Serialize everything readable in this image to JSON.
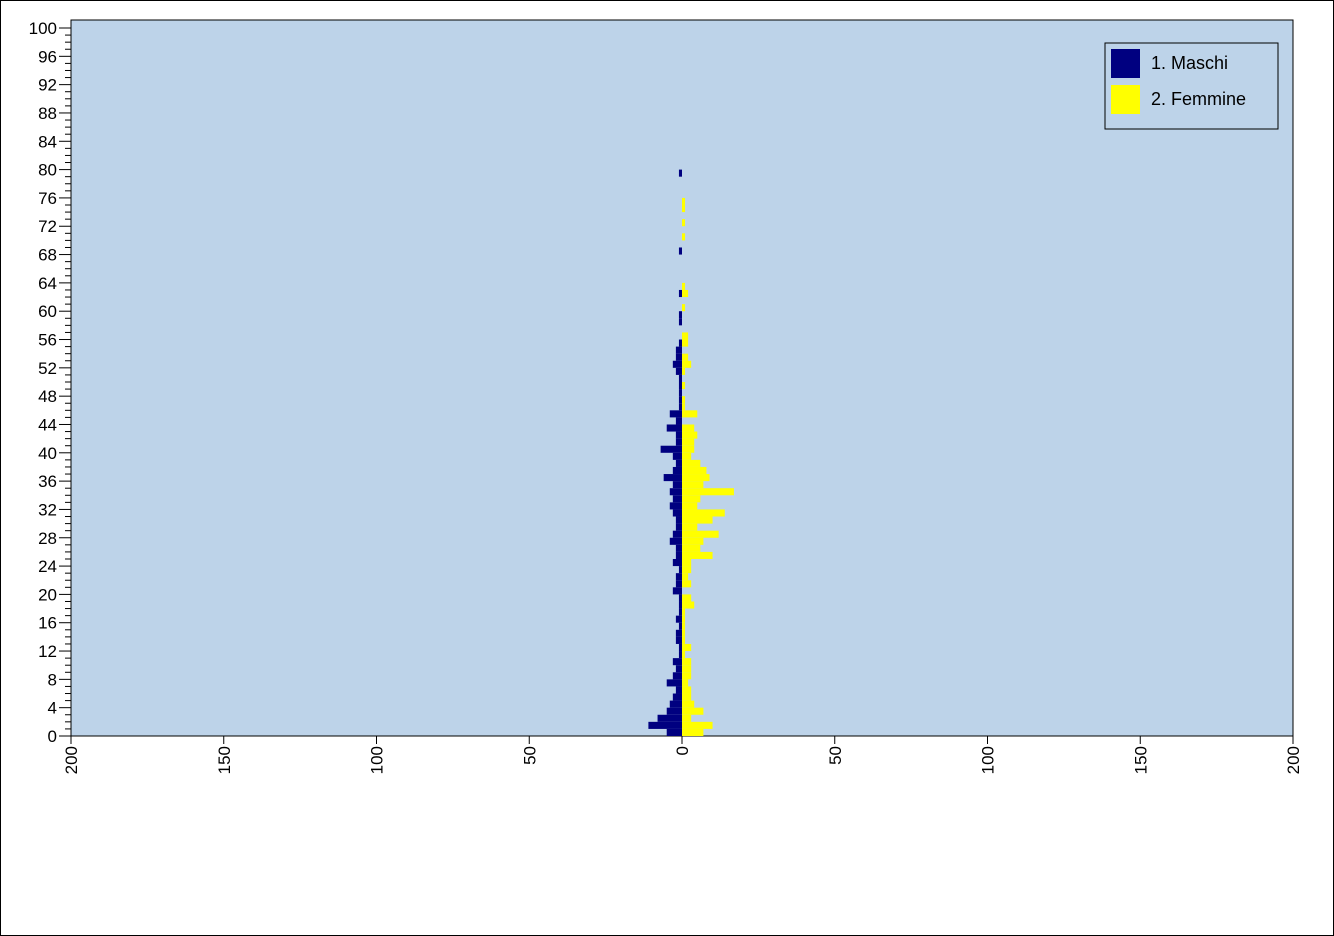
{
  "chart_data": {
    "type": "bar",
    "orientation": "horizontal",
    "layout": "population-pyramid",
    "title": "",
    "xlabel": "",
    "ylabel": "",
    "y_ticks": [
      "0",
      "4",
      "8",
      "12",
      "16",
      "20",
      "24",
      "28",
      "32",
      "36",
      "40",
      "44",
      "48",
      "52",
      "56",
      "60",
      "64",
      "68",
      "72",
      "76",
      "80",
      "84",
      "88",
      "92",
      "96",
      "100"
    ],
    "x_ticks": [
      "200",
      "150",
      "100",
      "50",
      "0",
      "50",
      "100",
      "150",
      "200"
    ],
    "xlim": [
      -200,
      200
    ],
    "ylim": [
      0,
      100
    ],
    "ages": [
      0,
      1,
      2,
      3,
      4,
      5,
      6,
      7,
      8,
      9,
      10,
      11,
      12,
      13,
      14,
      15,
      16,
      17,
      18,
      19,
      20,
      21,
      22,
      23,
      24,
      25,
      26,
      27,
      28,
      29,
      30,
      31,
      32,
      33,
      34,
      35,
      36,
      37,
      38,
      39,
      40,
      41,
      42,
      43,
      44,
      45,
      46,
      47,
      48,
      49,
      50,
      51,
      52,
      53,
      54,
      55,
      56,
      57,
      58,
      59,
      60,
      61,
      62,
      63,
      64,
      65,
      66,
      67,
      68,
      69,
      70,
      71,
      72,
      73,
      74,
      75,
      76,
      77,
      78,
      79,
      80
    ],
    "series": [
      {
        "name": "1. Maschi",
        "color": "#000080",
        "values": [
          5,
          11,
          8,
          5,
          4,
          3,
          2,
          5,
          3,
          2,
          3,
          1,
          1,
          2,
          2,
          1,
          2,
          1,
          1,
          1,
          3,
          2,
          2,
          1,
          3,
          2,
          2,
          4,
          3,
          2,
          2,
          3,
          4,
          3,
          4,
          3,
          6,
          3,
          2,
          3,
          7,
          2,
          2,
          5,
          2,
          4,
          1,
          1,
          1,
          1,
          1,
          2,
          3,
          2,
          2,
          1,
          0,
          0,
          1,
          1,
          0,
          0,
          1,
          0,
          0,
          0,
          0,
          0,
          1,
          0,
          0,
          0,
          0,
          0,
          0,
          0,
          0,
          0,
          0,
          1,
          0
        ]
      },
      {
        "name": "2. Femmine",
        "color": "#ffff00",
        "values": [
          7,
          10,
          3,
          7,
          4,
          3,
          3,
          2,
          3,
          3,
          3,
          1,
          3,
          1,
          1,
          1,
          1,
          1,
          4,
          3,
          0,
          3,
          2,
          3,
          3,
          10,
          6,
          7,
          12,
          5,
          10,
          14,
          5,
          6,
          17,
          7,
          9,
          8,
          6,
          3,
          4,
          4,
          5,
          4,
          0,
          5,
          1,
          1,
          0,
          1,
          0,
          1,
          3,
          2,
          0,
          2,
          2,
          0,
          0,
          0,
          1,
          0,
          2,
          1,
          0,
          0,
          0,
          0,
          0,
          0,
          1,
          0,
          1,
          0,
          1,
          1,
          0,
          0,
          0,
          0,
          0
        ]
      }
    ],
    "legend_position": "top-right",
    "plot_background": "#bdd3e9",
    "grid": false
  }
}
